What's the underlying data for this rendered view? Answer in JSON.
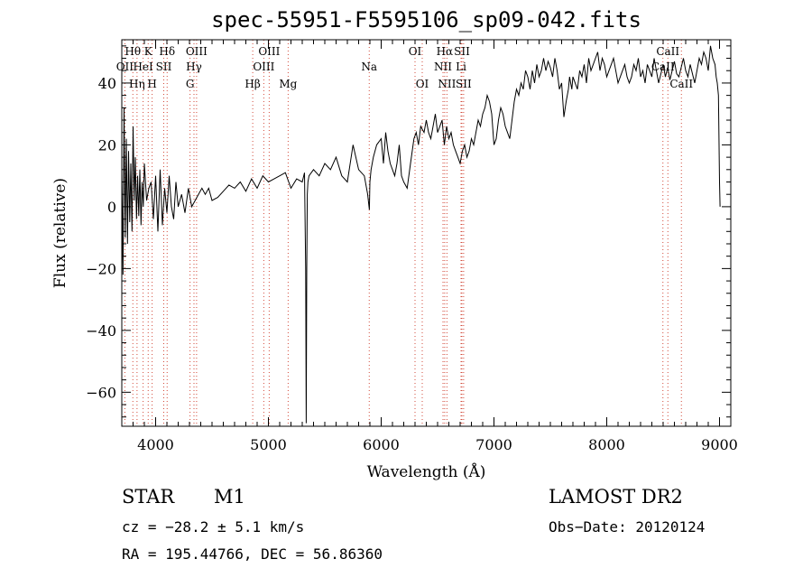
{
  "chart_data": {
    "type": "line",
    "title": "spec-55951-F5595106_sp09-042.fits",
    "xlabel": "Wavelength (Å)",
    "ylabel": "Flux (relative)",
    "xlim": [
      3700,
      9100
    ],
    "ylim": [
      -71,
      54
    ],
    "x_ticks": [
      4000,
      5000,
      6000,
      7000,
      8000,
      9000
    ],
    "x_tick_labels": [
      "4000",
      "5000",
      "6000",
      "7000",
      "8000",
      "9000"
    ],
    "y_ticks": [
      -60,
      -40,
      -20,
      0,
      20,
      40
    ],
    "y_tick_labels": [
      "−60",
      "−40",
      "−20",
      "0",
      "20",
      "40"
    ],
    "series": [
      {
        "x": [
          3700,
          3710,
          3720,
          3730,
          3740,
          3750,
          3760,
          3770,
          3780,
          3790,
          3800,
          3810,
          3820,
          3830,
          3840,
          3850,
          3860,
          3870,
          3880,
          3890,
          3900,
          3920,
          3940,
          3960,
          3980,
          4000,
          4020,
          4040,
          4060,
          4080,
          4100,
          4120,
          4140,
          4160,
          4180,
          4200,
          4230,
          4260,
          4290,
          4320,
          4350,
          4380,
          4410,
          4440,
          4470,
          4500,
          4550,
          4600,
          4650,
          4700,
          4750,
          4800,
          4850,
          4900,
          4950,
          5000,
          5050,
          5100,
          5150,
          5200,
          5250,
          5300,
          5320,
          5330,
          5335,
          5340,
          5345,
          5350,
          5360,
          5400,
          5450,
          5500,
          5550,
          5600,
          5650,
          5700,
          5750,
          5800,
          5850,
          5880,
          5895,
          5900,
          5910,
          5930,
          5960,
          6000,
          6020,
          6040,
          6060,
          6080,
          6100,
          6120,
          6140,
          6160,
          6180,
          6200,
          6230,
          6260,
          6290,
          6310,
          6330,
          6350,
          6380,
          6400,
          6420,
          6440,
          6460,
          6480,
          6500,
          6520,
          6540,
          6560,
          6580,
          6600,
          6620,
          6640,
          6660,
          6680,
          6700,
          6720,
          6740,
          6760,
          6780,
          6800,
          6820,
          6840,
          6860,
          6880,
          6900,
          6920,
          6940,
          6960,
          6980,
          7000,
          7020,
          7040,
          7060,
          7080,
          7100,
          7120,
          7140,
          7160,
          7180,
          7200,
          7220,
          7240,
          7260,
          7280,
          7300,
          7320,
          7340,
          7360,
          7380,
          7400,
          7420,
          7440,
          7460,
          7480,
          7500,
          7520,
          7540,
          7560,
          7580,
          7600,
          7620,
          7640,
          7660,
          7670,
          7680,
          7690,
          7700,
          7720,
          7740,
          7760,
          7780,
          7800,
          7820,
          7840,
          7860,
          7880,
          7900,
          7920,
          7940,
          7960,
          7980,
          8000,
          8020,
          8040,
          8060,
          8080,
          8100,
          8120,
          8140,
          8160,
          8180,
          8200,
          8220,
          8240,
          8260,
          8280,
          8300,
          8320,
          8340,
          8360,
          8380,
          8400,
          8420,
          8440,
          8460,
          8480,
          8500,
          8520,
          8540,
          8560,
          8580,
          8600,
          8620,
          8640,
          8660,
          8680,
          8700,
          8720,
          8740,
          8760,
          8780,
          8800,
          8820,
          8840,
          8860,
          8880,
          8900,
          8920,
          8940,
          8960,
          8970,
          8980,
          8990,
          9000,
          9005
        ],
        "y": [
          12,
          -22,
          32,
          -10,
          22,
          -12,
          18,
          -5,
          14,
          -8,
          26,
          2,
          16,
          -4,
          10,
          -3,
          12,
          -6,
          8,
          0,
          14,
          2,
          6,
          8,
          -4,
          10,
          -8,
          12,
          -6,
          6,
          -2,
          10,
          0,
          -4,
          8,
          0,
          4,
          -2,
          6,
          0,
          2,
          4,
          6,
          4,
          6,
          2,
          3,
          5,
          7,
          6,
          8,
          5,
          9,
          6,
          10,
          8,
          9,
          10,
          11,
          6,
          9,
          8,
          11,
          -20,
          -70,
          -20,
          4,
          8,
          10,
          12,
          10,
          14,
          12,
          16,
          10,
          8,
          20,
          12,
          10,
          4,
          -1,
          8,
          12,
          16,
          20,
          22,
          14,
          24,
          18,
          14,
          12,
          10,
          14,
          20,
          10,
          8,
          6,
          14,
          22,
          24,
          20,
          26,
          24,
          28,
          24,
          22,
          26,
          30,
          24,
          26,
          28,
          20,
          26,
          22,
          24,
          20,
          18,
          16,
          14,
          18,
          20,
          16,
          18,
          22,
          20,
          24,
          28,
          26,
          30,
          32,
          36,
          34,
          30,
          20,
          22,
          28,
          32,
          30,
          26,
          24,
          22,
          28,
          34,
          38,
          36,
          40,
          38,
          44,
          42,
          38,
          44,
          40,
          46,
          42,
          44,
          48,
          44,
          47,
          45,
          42,
          48,
          44,
          38,
          40,
          29,
          34,
          38,
          42,
          40,
          38,
          42,
          40,
          38,
          44,
          42,
          46,
          40,
          48,
          44,
          46,
          48,
          50,
          44,
          48,
          46,
          42,
          44,
          46,
          48,
          44,
          40,
          42,
          44,
          46,
          42,
          40,
          42,
          46,
          44,
          48,
          42,
          44,
          40,
          46,
          44,
          42,
          48,
          44,
          40,
          43,
          46,
          42,
          45,
          41,
          44,
          47,
          43,
          42,
          45,
          48,
          44,
          42,
          46,
          43,
          40,
          44,
          48,
          46,
          50,
          48,
          44,
          52,
          48,
          46,
          42,
          40,
          36,
          8,
          0
        ]
      }
    ],
    "lines": [
      {
        "label": "Hθ",
        "x": 3798,
        "row": 1
      },
      {
        "label": "OII",
        "x": 3727,
        "row": 2
      },
      {
        "label": "Hη",
        "x": 3835,
        "row": 3
      },
      {
        "label": "K",
        "x": 3934,
        "row": 1
      },
      {
        "label": "H",
        "x": 3969,
        "row": 3
      },
      {
        "label": "HeI",
        "x": 3889,
        "row": 2
      },
      {
        "label": "SII",
        "x": 4072,
        "row": 2
      },
      {
        "label": "Hδ",
        "x": 4102,
        "row": 1
      },
      {
        "label": "OIII",
        "x": 4363,
        "row": 1
      },
      {
        "label": "Hγ",
        "x": 4340,
        "row": 2
      },
      {
        "label": "G",
        "x": 4305,
        "row": 3
      },
      {
        "label": "Hβ",
        "x": 4861,
        "row": 3
      },
      {
        "label": "OIII",
        "x": 4959,
        "row": 2
      },
      {
        "label": "OIII",
        "x": 5007,
        "row": 1
      },
      {
        "label": "Mg",
        "x": 5175,
        "row": 3
      },
      {
        "label": "Na",
        "x": 5894,
        "row": 2
      },
      {
        "label": "OI",
        "x": 6300,
        "row": 1
      },
      {
        "label": "OI",
        "x": 6364,
        "row": 3
      },
      {
        "label": "Hα",
        "x": 6563,
        "row": 1
      },
      {
        "label": "NII",
        "x": 6548,
        "row": 2
      },
      {
        "label": "NII",
        "x": 6583,
        "row": 3
      },
      {
        "label": "SII",
        "x": 6716,
        "row": 1
      },
      {
        "label": "Li",
        "x": 6708,
        "row": 2
      },
      {
        "label": "SII",
        "x": 6731,
        "row": 3
      },
      {
        "label": "CaII",
        "x": 8542,
        "row": 1
      },
      {
        "label": "CaII",
        "x": 8498,
        "row": 2
      },
      {
        "label": "CaII",
        "x": 8662,
        "row": 3
      }
    ]
  },
  "footer": {
    "object_class": "STAR",
    "object_subclass": "M1",
    "survey": "LAMOST DR2",
    "cz": "cz = −28.2 ± 5.1 km/s",
    "obs_date": "Obs−Date: 20120124",
    "radec": "RA = 195.44766, DEC =  56.86360"
  }
}
